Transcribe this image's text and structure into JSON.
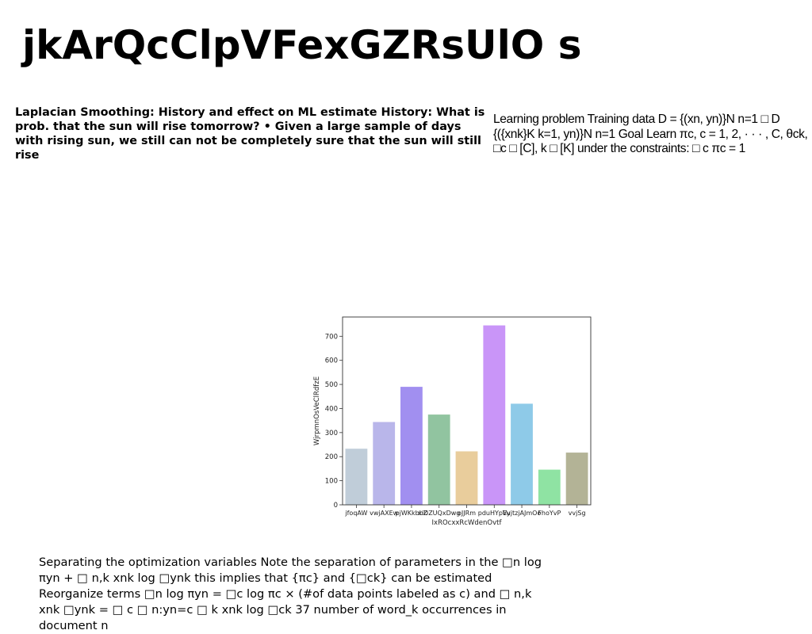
{
  "page": {
    "title": "jkArQcClpVFexGZRsUlO s",
    "left_paragraph": "Laplacian Smoothing: History and effect on ML estimate History: What is prob. that the sun will rise tomorrow? • Given a large sample of days with rising sun, we still can not be completely sure that the sun will still rise",
    "right_paragraph": "Learning problem Training data D = {(xn, yn)}N n=1 □ D {({xnk}K k=1, yn)}N n=1 Goal Learn πc, c = 1, 2, · · · , C, θck, □c □ [C], k □ [K] under the constraints: □ c πc = 1",
    "bottom_paragraph": "Separating the optimization variables Note the separation of parameters in the □n log πyn + □ n,k xnk log □ynk this implies that {πc} and {□ck} can be estimated Reorganize terms □n log πyn = □c log πc × (#of data points labeled as c) and □ n,k xnk □ynk = □ c □ n:yn=c □ k xnk log □ck 37 number of word_k occurrences in document n"
  },
  "chart_data": {
    "type": "bar",
    "categories": [
      "jfoqAW",
      "vwjAXEw",
      "pjWKkbbZ",
      "xiDZUQxDwg",
      "oJJRm",
      "pduHYpEy",
      "VujtzjAJmOo",
      "FhoYvP",
      "vvjSg"
    ],
    "values": [
      233,
      344,
      490,
      375,
      222,
      745,
      420,
      146,
      217
    ],
    "colors": [
      "#c0cdd9",
      "#b9b6ea",
      "#a18ff0",
      "#91c4a0",
      "#e9cd9c",
      "#c995f8",
      "#8ecae8",
      "#8fe3a3",
      "#b3b396"
    ],
    "xlabel": "IxROcxxRcWdenOvtf",
    "ylabel": "WjrpmnOsVeClRdfzE",
    "ylim": [
      0,
      780
    ],
    "yticks": [
      0,
      100,
      200,
      300,
      400,
      500,
      600,
      700
    ],
    "grid": false
  }
}
